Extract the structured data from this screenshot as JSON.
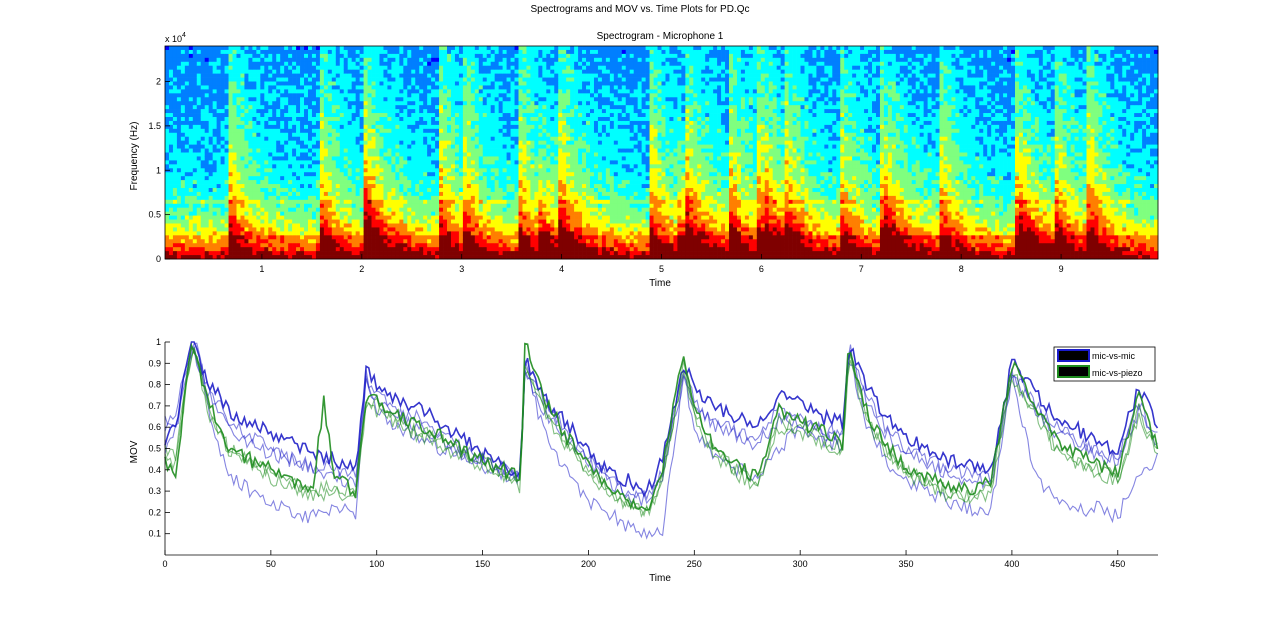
{
  "figure": {
    "title": "Spectrograms and MOV vs. Time Plots for PD.Qc"
  },
  "chart_data": [
    {
      "type": "heatmap",
      "title": "Spectrogram - Microphone 1",
      "xlabel": "Time",
      "ylabel": "Frequency (Hz)",
      "y_exponent_label": "x 10",
      "y_exponent_power": "4",
      "xlim": [
        0.03,
        9.97
      ],
      "ylim": [
        0,
        24000
      ],
      "x_ticks": [
        1,
        2,
        3,
        4,
        5,
        6,
        7,
        8,
        9
      ],
      "y_ticks": [
        0,
        0.5,
        1,
        1.5,
        2
      ],
      "onsets": [
        0.7,
        1.6,
        2.05,
        2.8,
        3.05,
        3.6,
        4.0,
        4.9,
        5.25,
        5.7,
        6.0,
        6.25,
        6.8,
        7.2,
        7.8,
        8.55,
        8.95,
        9.3
      ],
      "strong_onsets": [
        2.05,
        3.8,
        5.2,
        6.05,
        7.25,
        8.6
      ],
      "colormap": [
        "#00007f",
        "#0000ff",
        "#007fff",
        "#00ffff",
        "#7fff7f",
        "#ffff00",
        "#ff7f00",
        "#ff0000",
        "#7f0000"
      ]
    },
    {
      "type": "line",
      "title": "",
      "xlabel": "Time",
      "ylabel": "MOV",
      "xlim": [
        0,
        469
      ],
      "ylim": [
        0,
        1
      ],
      "x_ticks": [
        0,
        50,
        100,
        150,
        200,
        250,
        300,
        350,
        400,
        450
      ],
      "y_ticks": [
        0.1,
        0.2,
        0.3,
        0.4,
        0.5,
        0.6,
        0.7,
        0.8,
        0.9,
        1
      ],
      "legend_position": "top-right",
      "series": [
        {
          "name": "mic-vs-mic",
          "color": "#2020c8",
          "group": "mic",
          "x": [
            0,
            5,
            10,
            13,
            16,
            20,
            25,
            30,
            40,
            50,
            60,
            70,
            80,
            90,
            95,
            100,
            110,
            120,
            130,
            140,
            150,
            160,
            168,
            170,
            180,
            190,
            200,
            210,
            220,
            228,
            235,
            245,
            250,
            260,
            270,
            280,
            290,
            300,
            310,
            320,
            323,
            330,
            340,
            350,
            360,
            370,
            380,
            390,
            400,
            410,
            420,
            430,
            440,
            450,
            460,
            469
          ],
          "y": [
            0.55,
            0.6,
            0.9,
            1.0,
            0.92,
            0.82,
            0.75,
            0.68,
            0.62,
            0.58,
            0.52,
            0.48,
            0.45,
            0.4,
            0.86,
            0.8,
            0.72,
            0.7,
            0.62,
            0.55,
            0.48,
            0.42,
            0.38,
            0.92,
            0.72,
            0.62,
            0.5,
            0.38,
            0.35,
            0.3,
            0.45,
            0.9,
            0.78,
            0.7,
            0.65,
            0.62,
            0.75,
            0.72,
            0.65,
            0.62,
            1.0,
            0.82,
            0.65,
            0.55,
            0.5,
            0.45,
            0.42,
            0.4,
            0.9,
            0.78,
            0.65,
            0.6,
            0.52,
            0.5,
            0.78,
            0.6
          ]
        },
        {
          "name": "",
          "color": "#2020c8",
          "group": "mic",
          "x": [
            0,
            5,
            10,
            13,
            16,
            20,
            25,
            30,
            40,
            50,
            60,
            70,
            80,
            90,
            95,
            100,
            110,
            120,
            130,
            140,
            150,
            160,
            168,
            170,
            180,
            190,
            200,
            210,
            220,
            228,
            235,
            245,
            250,
            260,
            270,
            280,
            290,
            300,
            310,
            320,
            323,
            330,
            340,
            350,
            360,
            370,
            380,
            390,
            400,
            410,
            420,
            430,
            440,
            450,
            460,
            469
          ],
          "y": [
            0.5,
            0.58,
            0.85,
            1.0,
            0.95,
            0.7,
            0.5,
            0.38,
            0.3,
            0.25,
            0.2,
            0.18,
            0.22,
            0.2,
            0.85,
            0.68,
            0.6,
            0.55,
            0.5,
            0.48,
            0.45,
            0.4,
            0.35,
            0.88,
            0.55,
            0.38,
            0.25,
            0.2,
            0.12,
            0.1,
            0.12,
            0.85,
            0.6,
            0.45,
            0.4,
            0.38,
            0.5,
            0.6,
            0.55,
            0.5,
            0.95,
            0.65,
            0.45,
            0.35,
            0.3,
            0.25,
            0.22,
            0.2,
            0.85,
            0.4,
            0.25,
            0.2,
            0.22,
            0.18,
            0.4,
            0.45
          ]
        },
        {
          "name": "",
          "color": "#2020c8",
          "group": "mic",
          "x": [
            0,
            5,
            10,
            13,
            16,
            20,
            25,
            30,
            40,
            50,
            60,
            70,
            80,
            90,
            95,
            100,
            110,
            120,
            130,
            140,
            150,
            160,
            168,
            170,
            180,
            190,
            200,
            210,
            220,
            228,
            235,
            245,
            250,
            260,
            270,
            280,
            290,
            300,
            310,
            320,
            323,
            330,
            340,
            350,
            360,
            370,
            380,
            390,
            400,
            410,
            420,
            430,
            440,
            450,
            460,
            469
          ],
          "y": [
            0.62,
            0.66,
            0.88,
            0.98,
            0.9,
            0.8,
            0.72,
            0.62,
            0.55,
            0.5,
            0.45,
            0.42,
            0.4,
            0.38,
            0.82,
            0.76,
            0.68,
            0.64,
            0.56,
            0.5,
            0.45,
            0.4,
            0.36,
            0.9,
            0.7,
            0.58,
            0.46,
            0.35,
            0.3,
            0.26,
            0.4,
            0.88,
            0.72,
            0.62,
            0.58,
            0.56,
            0.68,
            0.66,
            0.6,
            0.56,
            0.98,
            0.78,
            0.6,
            0.5,
            0.45,
            0.4,
            0.38,
            0.36,
            0.86,
            0.72,
            0.6,
            0.55,
            0.48,
            0.46,
            0.7,
            0.55
          ]
        },
        {
          "name": "",
          "color": "#2020c8",
          "group": "mic",
          "x": [
            0,
            5,
            10,
            13,
            16,
            20,
            25,
            30,
            40,
            50,
            60,
            70,
            80,
            90,
            95,
            100,
            110,
            120,
            130,
            140,
            150,
            160,
            168,
            170,
            180,
            190,
            200,
            210,
            220,
            228,
            235,
            245,
            250,
            260,
            270,
            280,
            290,
            300,
            310,
            320,
            323,
            330,
            340,
            350,
            360,
            370,
            380,
            390,
            400,
            410,
            420,
            430,
            440,
            450,
            460,
            469
          ],
          "y": [
            0.58,
            0.62,
            0.86,
            0.96,
            0.88,
            0.76,
            0.68,
            0.6,
            0.52,
            0.48,
            0.44,
            0.4,
            0.36,
            0.34,
            0.8,
            0.74,
            0.66,
            0.6,
            0.54,
            0.48,
            0.42,
            0.38,
            0.34,
            0.86,
            0.66,
            0.55,
            0.44,
            0.34,
            0.28,
            0.25,
            0.38,
            0.84,
            0.7,
            0.6,
            0.56,
            0.52,
            0.64,
            0.62,
            0.58,
            0.54,
            0.96,
            0.76,
            0.58,
            0.48,
            0.43,
            0.38,
            0.36,
            0.34,
            0.84,
            0.7,
            0.58,
            0.52,
            0.46,
            0.44,
            0.68,
            0.52
          ]
        },
        {
          "name": "mic-vs-piezo",
          "color": "#1e8c1e",
          "group": "piezo",
          "x": [
            0,
            5,
            10,
            13,
            16,
            20,
            25,
            30,
            40,
            50,
            60,
            70,
            75,
            80,
            90,
            95,
            100,
            110,
            120,
            130,
            140,
            150,
            160,
            168,
            170,
            180,
            190,
            200,
            210,
            220,
            228,
            235,
            245,
            250,
            260,
            270,
            280,
            290,
            300,
            310,
            320,
            323,
            330,
            340,
            350,
            360,
            370,
            380,
            390,
            400,
            410,
            420,
            430,
            440,
            450,
            460,
            469
          ],
          "y": [
            0.45,
            0.38,
            0.8,
            1.0,
            0.9,
            0.72,
            0.62,
            0.5,
            0.45,
            0.4,
            0.35,
            0.32,
            0.72,
            0.36,
            0.3,
            0.75,
            0.72,
            0.66,
            0.6,
            0.56,
            0.5,
            0.45,
            0.4,
            0.36,
            1.0,
            0.72,
            0.55,
            0.42,
            0.32,
            0.25,
            0.22,
            0.4,
            0.95,
            0.7,
            0.5,
            0.42,
            0.36,
            0.68,
            0.62,
            0.58,
            0.52,
            1.0,
            0.7,
            0.52,
            0.42,
            0.36,
            0.32,
            0.3,
            0.35,
            0.9,
            0.72,
            0.55,
            0.48,
            0.42,
            0.38,
            0.75,
            0.5
          ]
        },
        {
          "name": "",
          "color": "#1e8c1e",
          "group": "piezo",
          "x": [
            0,
            5,
            10,
            13,
            16,
            20,
            25,
            30,
            40,
            50,
            60,
            70,
            80,
            90,
            95,
            100,
            110,
            120,
            130,
            140,
            150,
            160,
            168,
            170,
            180,
            190,
            200,
            210,
            220,
            228,
            235,
            245,
            250,
            260,
            270,
            280,
            290,
            300,
            310,
            320,
            323,
            330,
            340,
            350,
            360,
            370,
            380,
            390,
            400,
            410,
            420,
            430,
            440,
            450,
            460,
            469
          ],
          "y": [
            0.5,
            0.45,
            0.82,
            0.98,
            0.88,
            0.7,
            0.6,
            0.5,
            0.44,
            0.38,
            0.34,
            0.3,
            0.32,
            0.28,
            0.72,
            0.7,
            0.64,
            0.58,
            0.54,
            0.48,
            0.44,
            0.38,
            0.34,
            0.9,
            0.68,
            0.52,
            0.4,
            0.3,
            0.24,
            0.2,
            0.36,
            0.9,
            0.66,
            0.48,
            0.4,
            0.34,
            0.62,
            0.6,
            0.55,
            0.5,
            0.96,
            0.68,
            0.5,
            0.4,
            0.35,
            0.3,
            0.28,
            0.3,
            0.86,
            0.7,
            0.52,
            0.45,
            0.4,
            0.36,
            0.68,
            0.48
          ]
        },
        {
          "name": "",
          "color": "#1e8c1e",
          "group": "piezo",
          "x": [
            0,
            5,
            10,
            13,
            16,
            20,
            25,
            30,
            40,
            50,
            60,
            70,
            80,
            90,
            95,
            100,
            110,
            120,
            130,
            140,
            150,
            160,
            168,
            170,
            180,
            190,
            200,
            210,
            220,
            228,
            235,
            245,
            250,
            260,
            270,
            280,
            290,
            300,
            310,
            320,
            323,
            330,
            340,
            350,
            360,
            370,
            380,
            390,
            400,
            410,
            420,
            430,
            440,
            450,
            460,
            469
          ],
          "y": [
            0.48,
            0.42,
            0.78,
            0.96,
            0.86,
            0.68,
            0.58,
            0.48,
            0.42,
            0.36,
            0.32,
            0.28,
            0.3,
            0.26,
            0.7,
            0.68,
            0.62,
            0.56,
            0.52,
            0.46,
            0.42,
            0.36,
            0.32,
            0.88,
            0.66,
            0.5,
            0.38,
            0.28,
            0.22,
            0.19,
            0.34,
            0.88,
            0.64,
            0.46,
            0.38,
            0.32,
            0.6,
            0.58,
            0.53,
            0.48,
            0.94,
            0.66,
            0.48,
            0.38,
            0.33,
            0.28,
            0.27,
            0.29,
            0.84,
            0.68,
            0.5,
            0.44,
            0.39,
            0.35,
            0.66,
            0.46
          ]
        }
      ]
    }
  ]
}
